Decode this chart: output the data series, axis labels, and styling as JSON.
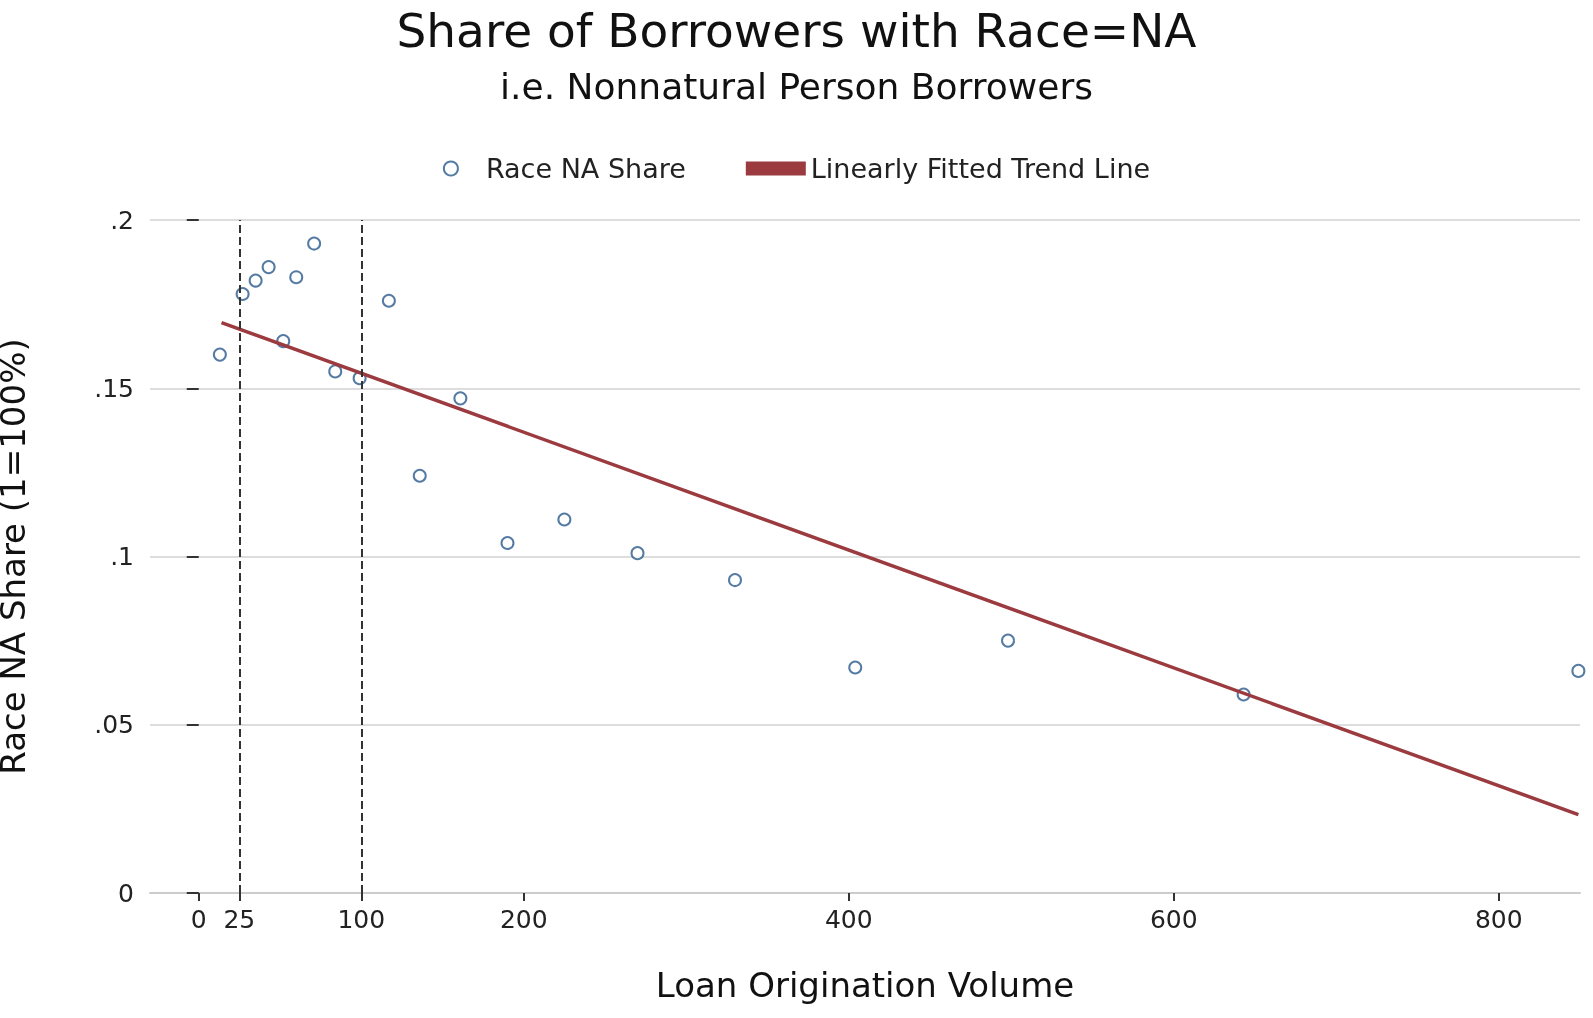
{
  "chart_data": {
    "type": "scatter",
    "title": "Share of Borrowers with Race=NA",
    "subtitle": "i.e. Nonnatural Person Borrowers",
    "xlabel": "Loan Origination Volume",
    "ylabel": "Race NA Share (1=100%)",
    "xlim": [
      -30,
      850
    ],
    "xticks": [
      0,
      25,
      100,
      200,
      400,
      600,
      800
    ],
    "ylim": [
      0,
      0.2
    ],
    "yticks": [
      {
        "value": 0,
        "label": "0"
      },
      {
        "value": 0.05,
        "label": ".05"
      },
      {
        "value": 0.1,
        "label": ".1"
      },
      {
        "value": 0.15,
        "label": ".15"
      },
      {
        "value": 0.2,
        "label": ".2"
      }
    ],
    "grid": "y",
    "legend": "top",
    "marker": "circle",
    "series": [
      {
        "name": "Race NA Share",
        "color": "#2b5a8c",
        "x": [
          13,
          27,
          35,
          43,
          52,
          60,
          71,
          84,
          99,
          117,
          136,
          161,
          190,
          225,
          270,
          330,
          404,
          498,
          643,
          849
        ],
        "values": [
          0.16,
          0.178,
          0.182,
          0.186,
          0.164,
          0.183,
          0.193,
          0.155,
          0.153,
          0.176,
          0.124,
          0.147,
          0.104,
          0.111,
          0.101,
          0.093,
          0.067,
          0.075,
          0.059,
          0.066
        ]
      },
      {
        "name": "Linearly Fitted Trend Line",
        "type": "line",
        "color": "#9b3a3f",
        "marker": "none",
        "x": [
          14,
          849
        ],
        "values": [
          0.1695,
          0.0233
        ]
      }
    ],
    "ref_lines": [
      {
        "axis": "x",
        "value": 25,
        "color": "#333333",
        "line_style": "dashed"
      },
      {
        "axis": "x",
        "value": 100,
        "color": "#333333",
        "line_style": "dashed"
      }
    ]
  }
}
